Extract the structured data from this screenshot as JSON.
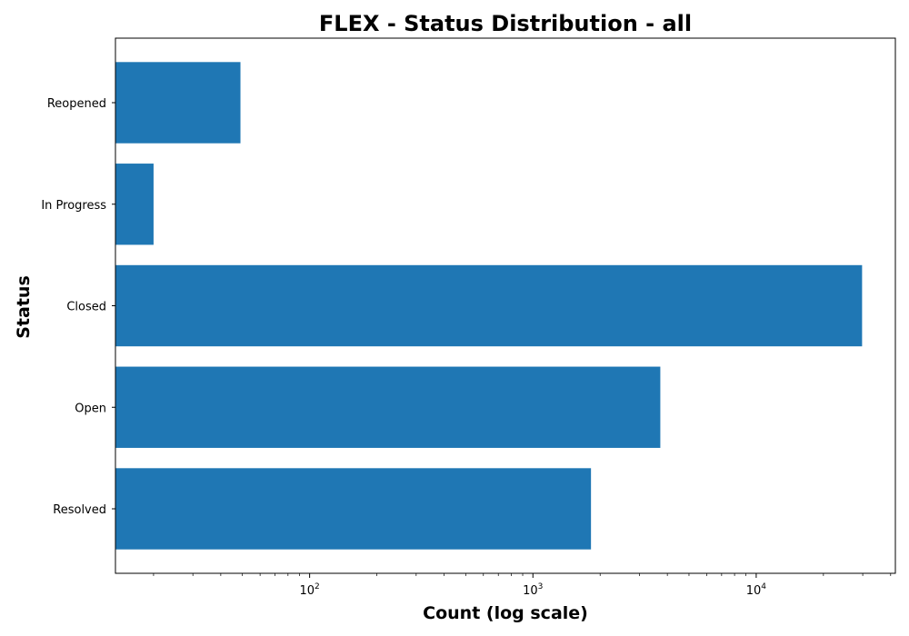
{
  "chart_data": {
    "type": "bar",
    "orientation": "horizontal",
    "title": "FLEX - Status Distribution - all",
    "xlabel": "Count (log scale)",
    "ylabel": "Status",
    "x_scale": "log",
    "xlim": [
      13.5,
      42000
    ],
    "x_ticks_major": [
      {
        "value": 100,
        "base": "10",
        "exp": "2"
      },
      {
        "value": 1000,
        "base": "10",
        "exp": "3"
      },
      {
        "value": 10000,
        "base": "10",
        "exp": "4"
      }
    ],
    "categories": [
      "Resolved",
      "Open",
      "Closed",
      "In Progress",
      "Reopened"
    ],
    "values": [
      1820,
      3720,
      29800,
      20,
      49
    ],
    "bar_color": "#1f77b4",
    "grid": false,
    "legend": "none"
  }
}
